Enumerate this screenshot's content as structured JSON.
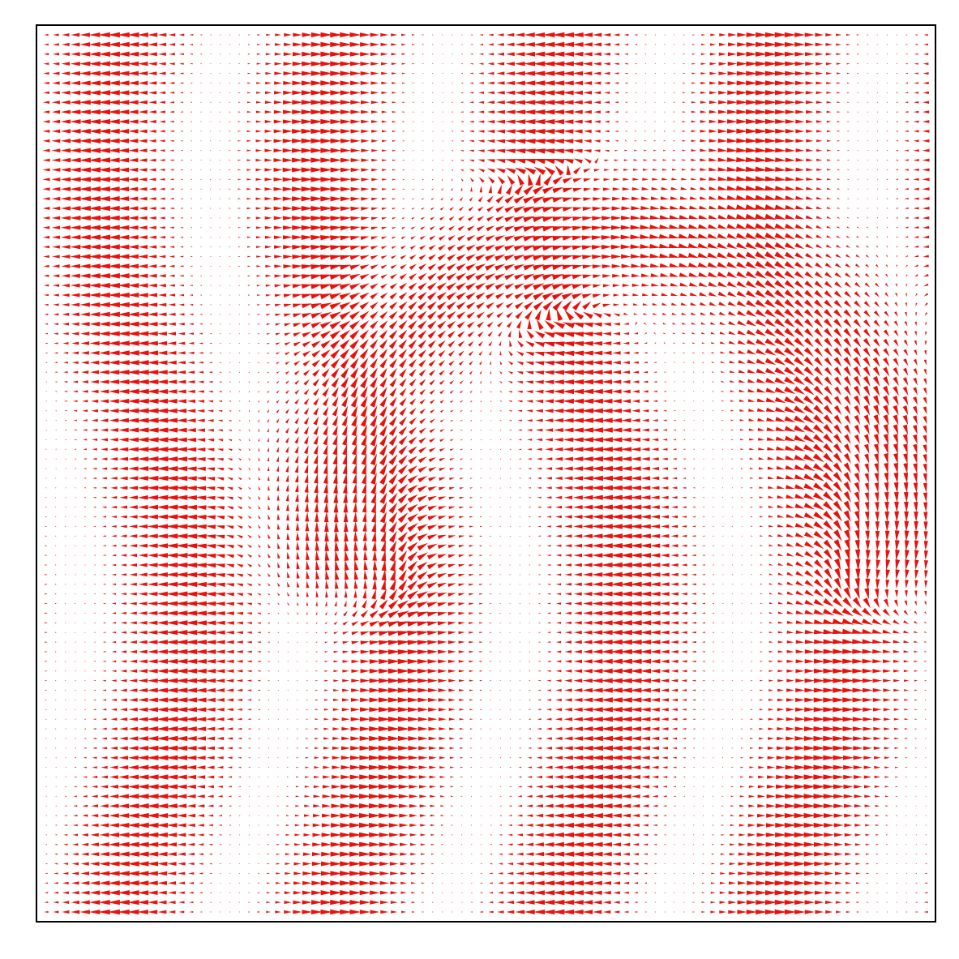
{
  "chart_data": {
    "type": "quiver",
    "title": "",
    "xlabel": "",
    "ylabel": "",
    "xticks": [],
    "yticks": [],
    "grid": false,
    "legend": "none",
    "arrow_color": "#e8120c",
    "frame_color": "#000000",
    "background_color": "#ffffff",
    "grid_points": {
      "nx": 92,
      "ny": 92
    },
    "field": {
      "description_of_pattern": "",
      "bands": [
        {
          "direction": "left",
          "x_center": 0.28
        },
        {
          "direction": "right",
          "x_center": 0.45
        },
        {
          "direction": "left",
          "x_center": 0.65
        },
        {
          "direction": "right",
          "x_center": 0.88
        }
      ],
      "vortex_center": [
        0.65,
        0.55
      ]
    }
  }
}
